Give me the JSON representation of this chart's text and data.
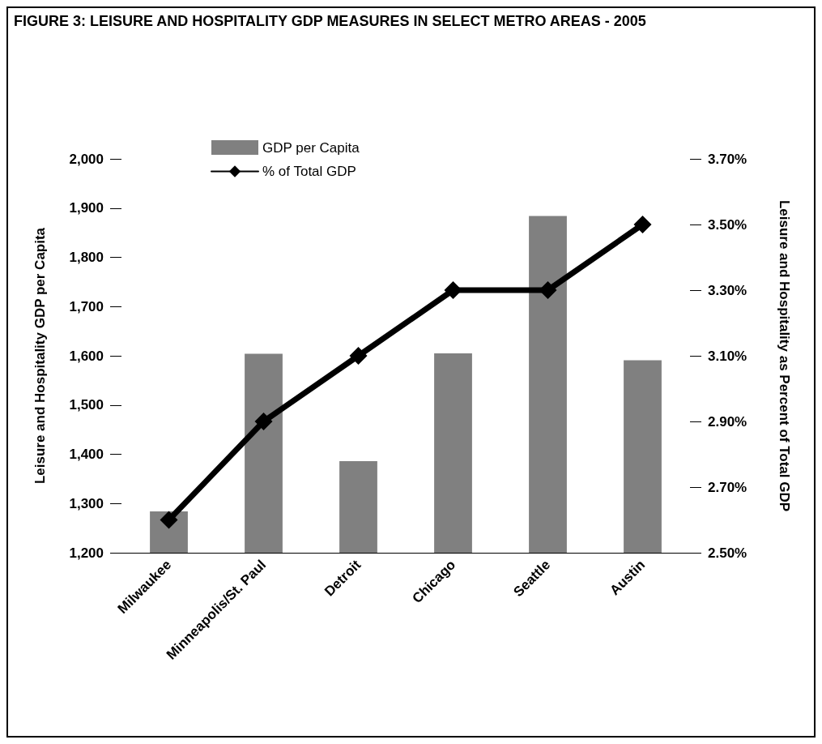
{
  "chart_data": {
    "type": "bar",
    "title": "FIGURE 3: LEISURE AND HOSPITALITY GDP MEASURES IN SELECT METRO AREAS - 2005",
    "ylabel": "Leisure and Hospitality GDP per Capita",
    "y2label": "Leisure and Hospitality as Percent of Total GDP",
    "categories": [
      "Milwaukee",
      "Minneapolis/St. Paul",
      "Detroit",
      "Chicago",
      "Seattle",
      "Austin"
    ],
    "series": [
      {
        "name": "GDP per Capita",
        "color": "#808080",
        "values": [
          1284,
          1604,
          1386,
          1605,
          1884,
          1591
        ]
      },
      {
        "name": "% of Total GDP",
        "type": "line",
        "axis": "y2",
        "color": "#000000",
        "marker": "diamond",
        "line_style": "solid",
        "values": [
          2.6,
          2.9,
          3.1,
          3.3,
          3.3,
          3.5
        ]
      }
    ],
    "ylim": [
      1200,
      2000
    ],
    "yticks": [
      {
        "value": 1200,
        "label": "1,200"
      },
      {
        "value": 1300,
        "label": "1,300"
      },
      {
        "value": 1400,
        "label": "1,400"
      },
      {
        "value": 1500,
        "label": "1,500"
      },
      {
        "value": 1600,
        "label": "1,600"
      },
      {
        "value": 1700,
        "label": "1,700"
      },
      {
        "value": 1800,
        "label": "1,800"
      },
      {
        "value": 1900,
        "label": "1,900"
      },
      {
        "value": 2000,
        "label": "2,000"
      }
    ],
    "y2lim": [
      2.5,
      3.7
    ],
    "y2ticks": [
      {
        "value": 2.5,
        "label": "2.50%"
      },
      {
        "value": 2.7,
        "label": "2.70%"
      },
      {
        "value": 2.9,
        "label": "2.90%"
      },
      {
        "value": 3.1,
        "label": "3.10%"
      },
      {
        "value": 3.3,
        "label": "3.30%"
      },
      {
        "value": 3.5,
        "label": "3.50%"
      },
      {
        "value": 3.7,
        "label": "3.70%"
      }
    ],
    "grid": false,
    "legend": "top left"
  }
}
